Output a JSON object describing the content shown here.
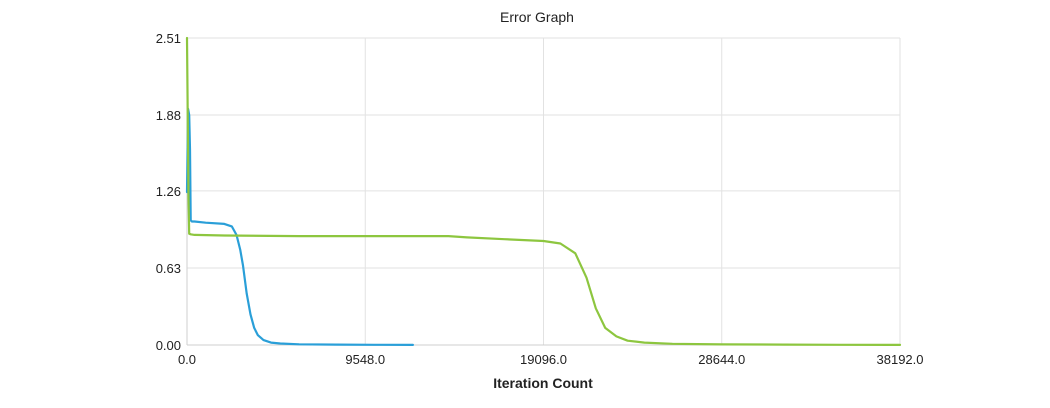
{
  "chart_data": {
    "type": "line",
    "title": "Error Graph",
    "xlabel": "Iteration Count",
    "ylabel": "",
    "xlim": [
      0,
      38192
    ],
    "ylim": [
      0,
      2.51
    ],
    "x_ticks": [
      0,
      9548,
      19096,
      28644,
      38192
    ],
    "x_tick_labels": [
      "0.0",
      "9548.0",
      "19096.0",
      "28644.0",
      "38192.0"
    ],
    "y_ticks": [
      0,
      0.63,
      1.26,
      1.88,
      2.51
    ],
    "y_tick_labels": [
      "0.00",
      "0.63",
      "1.26",
      "1.88",
      "2.51"
    ],
    "grid": true,
    "legend": "none",
    "series": [
      {
        "color": "#2a9fd8",
        "x": [
          0,
          60,
          120,
          160,
          200,
          260,
          400,
          1000,
          2000,
          2400,
          2650,
          2850,
          3000,
          3200,
          3400,
          3600,
          3800,
          4100,
          4500,
          5000,
          6000,
          8000,
          10000,
          12100
        ],
        "y": [
          1.25,
          1.93,
          1.88,
          1.6,
          1.02,
          1.01,
          1.01,
          1.0,
          0.99,
          0.97,
          0.9,
          0.78,
          0.65,
          0.42,
          0.25,
          0.14,
          0.08,
          0.04,
          0.02,
          0.012,
          0.006,
          0.003,
          0.002,
          0.001
        ]
      },
      {
        "color": "#8dc63f",
        "x": [
          0,
          40,
          80,
          120,
          200,
          400,
          2000,
          6000,
          10000,
          14000,
          15000,
          17000,
          19096,
          20000,
          20800,
          21400,
          21900,
          22400,
          23000,
          23600,
          24500,
          26000,
          28644,
          32000,
          35000,
          38192
        ],
        "y": [
          2.51,
          1.9,
          1.2,
          0.91,
          0.905,
          0.9,
          0.895,
          0.89,
          0.89,
          0.89,
          0.88,
          0.865,
          0.85,
          0.83,
          0.75,
          0.55,
          0.3,
          0.14,
          0.07,
          0.035,
          0.02,
          0.01,
          0.005,
          0.003,
          0.002,
          0.001
        ]
      }
    ]
  }
}
